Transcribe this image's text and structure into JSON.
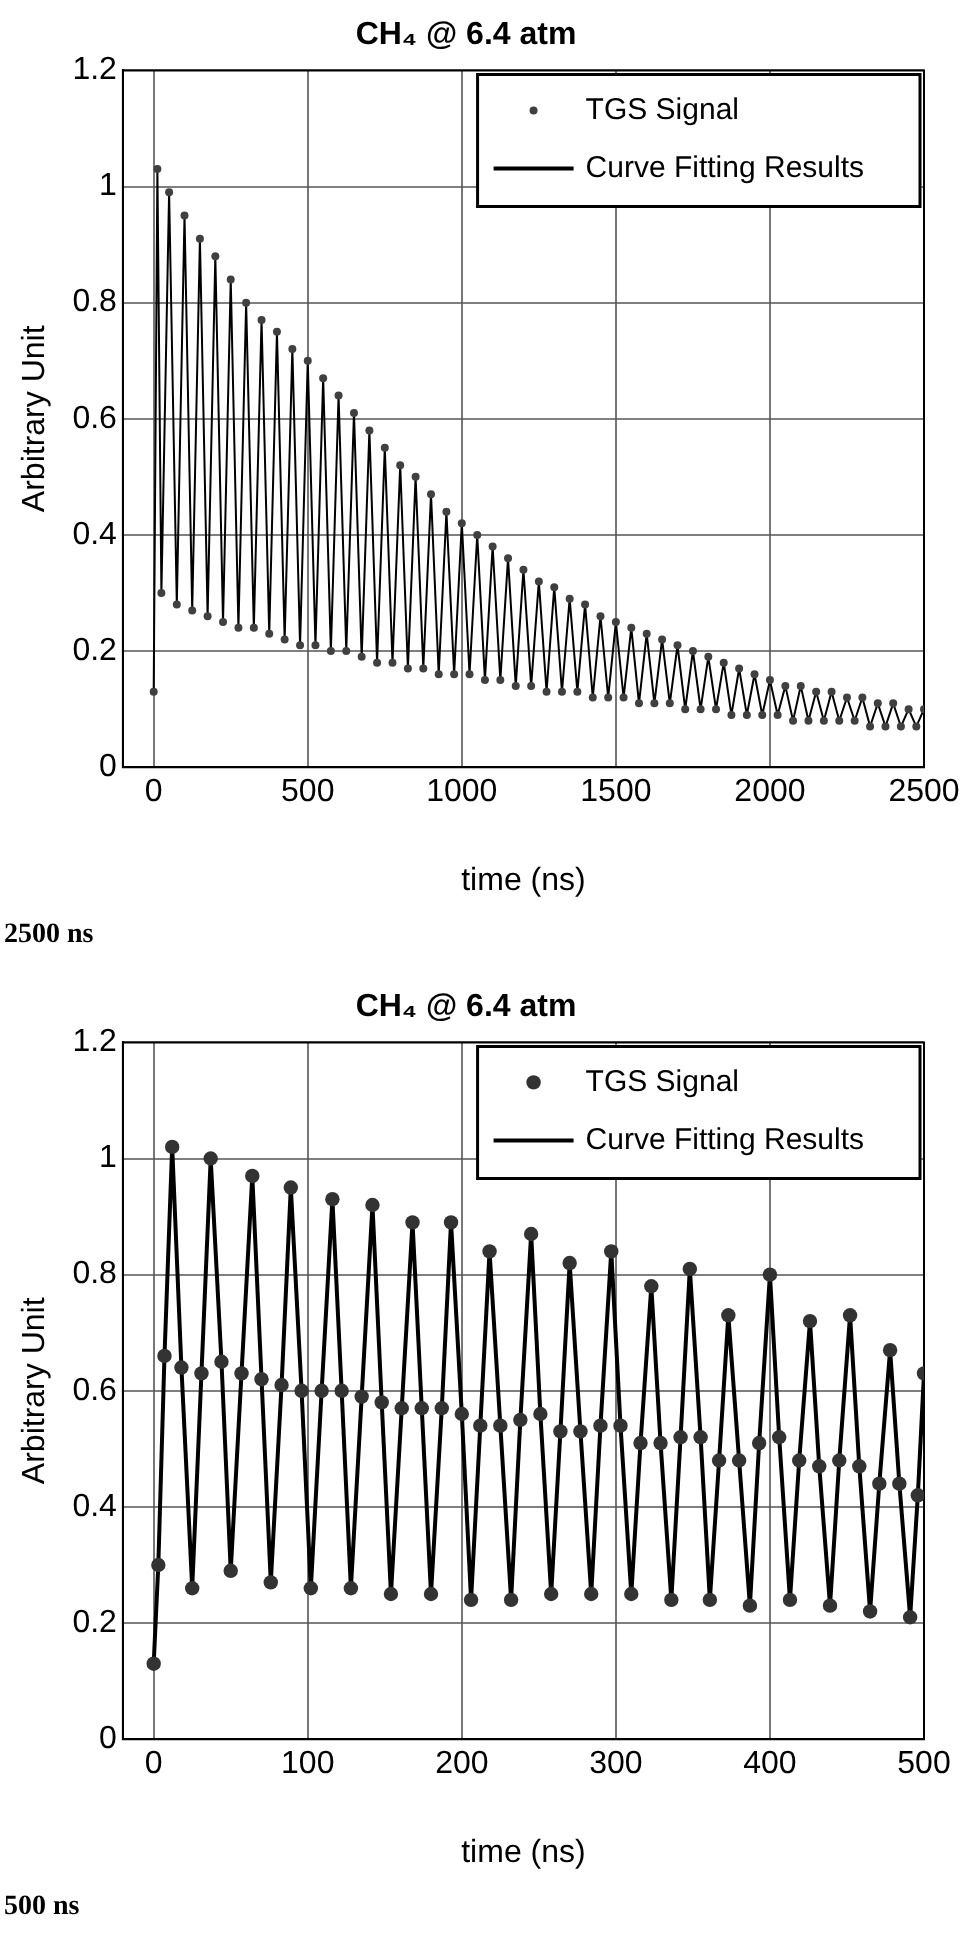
{
  "chart_data": [
    {
      "type": "scatter",
      "title": "CH₄ @ 6.4 atm",
      "xlabel": "time (ns)",
      "ylabel": "Arbitrary Unit",
      "xlim": [
        -100,
        2500
      ],
      "xticks": [
        0,
        500,
        1000,
        1500,
        2000,
        2500
      ],
      "ylim": [
        0,
        1.2
      ],
      "yticks": [
        0,
        0.2,
        0.4,
        0.6,
        0.8,
        1,
        1.2
      ],
      "grid": true,
      "legend": "top right",
      "annotations": [
        "2500 ns"
      ],
      "x": [
        0,
        12,
        25,
        50,
        75,
        100,
        125,
        150,
        175,
        200,
        225,
        250,
        275,
        300,
        325,
        350,
        375,
        400,
        425,
        450,
        475,
        500,
        525,
        550,
        575,
        600,
        625,
        650,
        675,
        700,
        725,
        750,
        775,
        800,
        825,
        850,
        875,
        900,
        925,
        950,
        975,
        1000,
        1025,
        1050,
        1075,
        1100,
        1125,
        1150,
        1175,
        1200,
        1225,
        1250,
        1275,
        1300,
        1325,
        1350,
        1375,
        1400,
        1425,
        1450,
        1475,
        1500,
        1525,
        1550,
        1575,
        1600,
        1625,
        1650,
        1675,
        1700,
        1725,
        1750,
        1775,
        1800,
        1825,
        1850,
        1875,
        1900,
        1925,
        1950,
        1975,
        2000,
        2025,
        2050,
        2075,
        2100,
        2125,
        2150,
        2175,
        2200,
        2225,
        2250,
        2275,
        2300,
        2325,
        2350,
        2375,
        2400,
        2425,
        2450,
        2475,
        2500
      ],
      "series": [
        {
          "name": "TGS Signal",
          "type": "scatter",
          "marker": "circle",
          "color": "#404040",
          "values": [
            0.13,
            1.03,
            0.3,
            0.99,
            0.28,
            0.95,
            0.27,
            0.91,
            0.26,
            0.88,
            0.25,
            0.84,
            0.24,
            0.8,
            0.24,
            0.77,
            0.23,
            0.75,
            0.22,
            0.72,
            0.21,
            0.7,
            0.21,
            0.67,
            0.2,
            0.64,
            0.2,
            0.61,
            0.19,
            0.58,
            0.18,
            0.55,
            0.18,
            0.52,
            0.17,
            0.5,
            0.17,
            0.47,
            0.16,
            0.44,
            0.16,
            0.42,
            0.16,
            0.4,
            0.15,
            0.38,
            0.15,
            0.36,
            0.14,
            0.34,
            0.14,
            0.32,
            0.13,
            0.31,
            0.13,
            0.29,
            0.13,
            0.28,
            0.12,
            0.26,
            0.12,
            0.25,
            0.12,
            0.24,
            0.11,
            0.23,
            0.11,
            0.22,
            0.11,
            0.21,
            0.1,
            0.2,
            0.1,
            0.19,
            0.1,
            0.18,
            0.09,
            0.17,
            0.09,
            0.16,
            0.09,
            0.15,
            0.09,
            0.14,
            0.08,
            0.14,
            0.08,
            0.13,
            0.08,
            0.13,
            0.08,
            0.12,
            0.08,
            0.12,
            0.07,
            0.11,
            0.07,
            0.11,
            0.07,
            0.1,
            0.07,
            0.1
          ]
        },
        {
          "name": "Curve Fitting Results",
          "type": "line",
          "marker": "none",
          "color": "#000000",
          "values": [
            0.13,
            1.03,
            0.3,
            0.99,
            0.28,
            0.95,
            0.27,
            0.91,
            0.26,
            0.88,
            0.25,
            0.84,
            0.24,
            0.8,
            0.24,
            0.77,
            0.23,
            0.75,
            0.22,
            0.72,
            0.21,
            0.7,
            0.21,
            0.67,
            0.2,
            0.64,
            0.2,
            0.61,
            0.19,
            0.58,
            0.18,
            0.55,
            0.18,
            0.52,
            0.17,
            0.5,
            0.17,
            0.47,
            0.16,
            0.44,
            0.16,
            0.42,
            0.16,
            0.4,
            0.15,
            0.38,
            0.15,
            0.36,
            0.14,
            0.34,
            0.14,
            0.32,
            0.13,
            0.31,
            0.13,
            0.29,
            0.13,
            0.28,
            0.12,
            0.26,
            0.12,
            0.25,
            0.12,
            0.24,
            0.11,
            0.23,
            0.11,
            0.22,
            0.11,
            0.21,
            0.1,
            0.2,
            0.1,
            0.19,
            0.1,
            0.18,
            0.09,
            0.17,
            0.09,
            0.16,
            0.09,
            0.15,
            0.09,
            0.14,
            0.08,
            0.14,
            0.08,
            0.13,
            0.08,
            0.13,
            0.08,
            0.12,
            0.08,
            0.12,
            0.07,
            0.11,
            0.07,
            0.11,
            0.07,
            0.1,
            0.07,
            0.1
          ]
        }
      ]
    },
    {
      "type": "scatter",
      "title": "CH₄ @ 6.4 atm",
      "xlabel": "time (ns)",
      "ylabel": "Arbitrary Unit",
      "xlim": [
        -20,
        500
      ],
      "xticks": [
        0,
        100,
        200,
        300,
        400,
        500
      ],
      "ylim": [
        0,
        1.2
      ],
      "yticks": [
        0,
        0.2,
        0.4,
        0.6,
        0.8,
        1,
        1.2
      ],
      "grid": true,
      "legend": "top right",
      "annotations": [
        "500 ns"
      ],
      "x": [
        0,
        3,
        7,
        12,
        18,
        25,
        31,
        37,
        44,
        50,
        57,
        64,
        70,
        76,
        83,
        89,
        96,
        102,
        109,
        116,
        122,
        128,
        135,
        142,
        148,
        154,
        161,
        168,
        174,
        180,
        187,
        193,
        200,
        206,
        212,
        218,
        225,
        232,
        238,
        245,
        251,
        258,
        264,
        270,
        277,
        284,
        290,
        297,
        303,
        310,
        316,
        323,
        329,
        336,
        342,
        348,
        355,
        361,
        367,
        373,
        380,
        387,
        393,
        400,
        406,
        413,
        419,
        426,
        432,
        439,
        445,
        452,
        458,
        465,
        471,
        478,
        484,
        491,
        496,
        500
      ],
      "series": [
        {
          "name": "TGS Signal",
          "type": "scatter",
          "marker": "circle",
          "color": "#333333",
          "values": [
            0.13,
            0.3,
            0.66,
            1.02,
            0.64,
            0.26,
            0.63,
            1.0,
            0.65,
            0.29,
            0.63,
            0.97,
            0.62,
            0.27,
            0.61,
            0.95,
            0.6,
            0.26,
            0.6,
            0.93,
            0.6,
            0.26,
            0.59,
            0.92,
            0.58,
            0.25,
            0.57,
            0.89,
            0.57,
            0.25,
            0.57,
            0.89,
            0.56,
            0.24,
            0.54,
            0.84,
            0.54,
            0.24,
            0.55,
            0.87,
            0.56,
            0.25,
            0.53,
            0.82,
            0.53,
            0.25,
            0.54,
            0.84,
            0.54,
            0.25,
            0.51,
            0.78,
            0.51,
            0.24,
            0.52,
            0.81,
            0.52,
            0.24,
            0.48,
            0.73,
            0.48,
            0.23,
            0.51,
            0.8,
            0.52,
            0.24,
            0.48,
            0.72,
            0.47,
            0.23,
            0.48,
            0.73,
            0.47,
            0.22,
            0.44,
            0.67,
            0.44,
            0.21,
            0.42,
            0.63
          ]
        },
        {
          "name": "Curve Fitting Results",
          "type": "line",
          "marker": "none",
          "color": "#000000",
          "values": [
            0.13,
            0.3,
            0.66,
            1.02,
            0.64,
            0.26,
            0.63,
            1.0,
            0.65,
            0.29,
            0.63,
            0.97,
            0.62,
            0.27,
            0.61,
            0.95,
            0.6,
            0.26,
            0.6,
            0.93,
            0.6,
            0.26,
            0.59,
            0.92,
            0.58,
            0.25,
            0.57,
            0.89,
            0.57,
            0.25,
            0.57,
            0.89,
            0.56,
            0.24,
            0.54,
            0.84,
            0.54,
            0.24,
            0.55,
            0.87,
            0.56,
            0.25,
            0.53,
            0.82,
            0.53,
            0.25,
            0.54,
            0.84,
            0.54,
            0.25,
            0.51,
            0.78,
            0.51,
            0.24,
            0.52,
            0.81,
            0.52,
            0.24,
            0.48,
            0.73,
            0.48,
            0.23,
            0.51,
            0.8,
            0.52,
            0.24,
            0.48,
            0.72,
            0.47,
            0.23,
            0.48,
            0.73,
            0.47,
            0.22,
            0.44,
            0.67,
            0.44,
            0.21,
            0.42,
            0.63
          ]
        }
      ]
    }
  ]
}
